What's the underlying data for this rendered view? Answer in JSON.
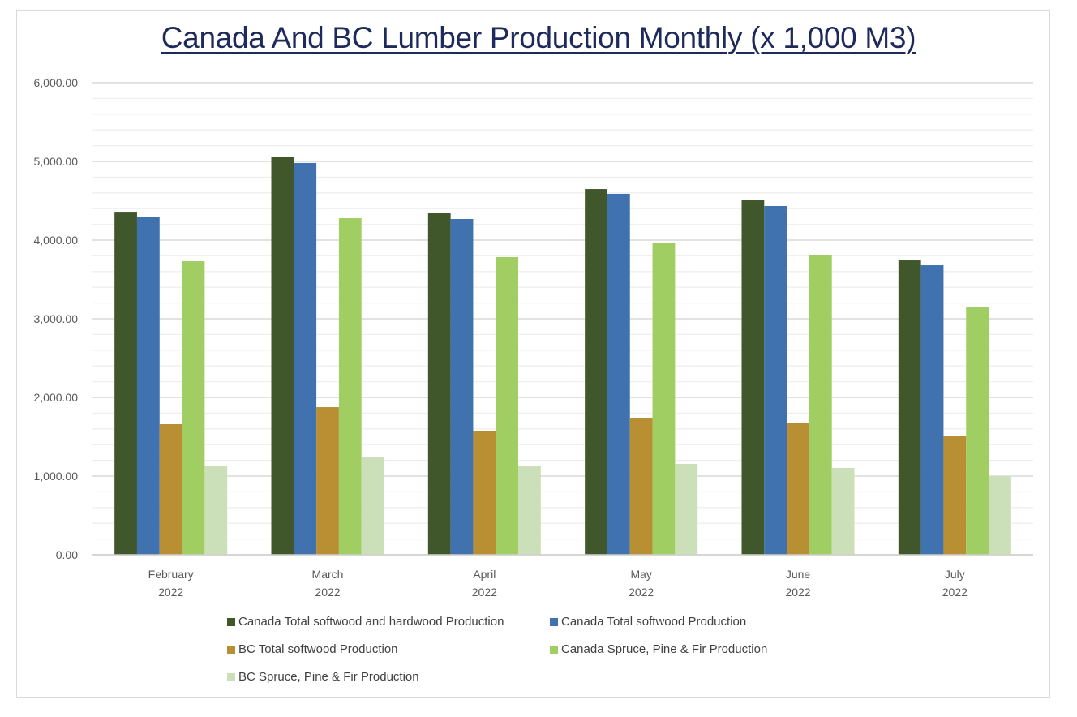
{
  "chart_data": {
    "type": "bar",
    "title": "Canada And BC Lumber Production Monthly (x 1,000 M3)",
    "xlabel": "",
    "ylabel": "",
    "ylim": [
      0,
      6000
    ],
    "y_major_step": 1000,
    "y_minor_step": 200,
    "grid": true,
    "legend_position": "bottom",
    "y_tick_labels": [
      "0.00",
      "1,000.00",
      "2,000.00",
      "3,000.00",
      "4,000.00",
      "5,000.00",
      "6,000.00"
    ],
    "categories": [
      {
        "month": "February",
        "year": "2022"
      },
      {
        "month": "March",
        "year": "2022"
      },
      {
        "month": "April",
        "year": "2022"
      },
      {
        "month": "May",
        "year": "2022"
      },
      {
        "month": "June",
        "year": "2022"
      },
      {
        "month": "July",
        "year": "2022"
      }
    ],
    "series": [
      {
        "name": "Canada Total softwood and hardwood Production",
        "color": "#3f572a",
        "values": [
          4360,
          5062,
          4340,
          4649,
          4505,
          3742
        ]
      },
      {
        "name": "Canada Total softwood Production",
        "color": "#4072b0",
        "values": [
          4290,
          4980,
          4268,
          4588,
          4433,
          3680
        ]
      },
      {
        "name": "BC Total softwood Production",
        "color": "#b88f33",
        "values": [
          1660,
          1876,
          1567,
          1742,
          1680,
          1515
        ]
      },
      {
        "name": "Canada Spruce, Pine & Fir Production",
        "color": "#a0ce63",
        "values": [
          3732,
          4278,
          3784,
          3959,
          3804,
          3144
        ]
      },
      {
        "name": "BC Spruce, Pine & Fir Production",
        "color": "#cbdfb8",
        "values": [
          1124,
          1247,
          1134,
          1155,
          1103,
          1000
        ]
      }
    ]
  }
}
